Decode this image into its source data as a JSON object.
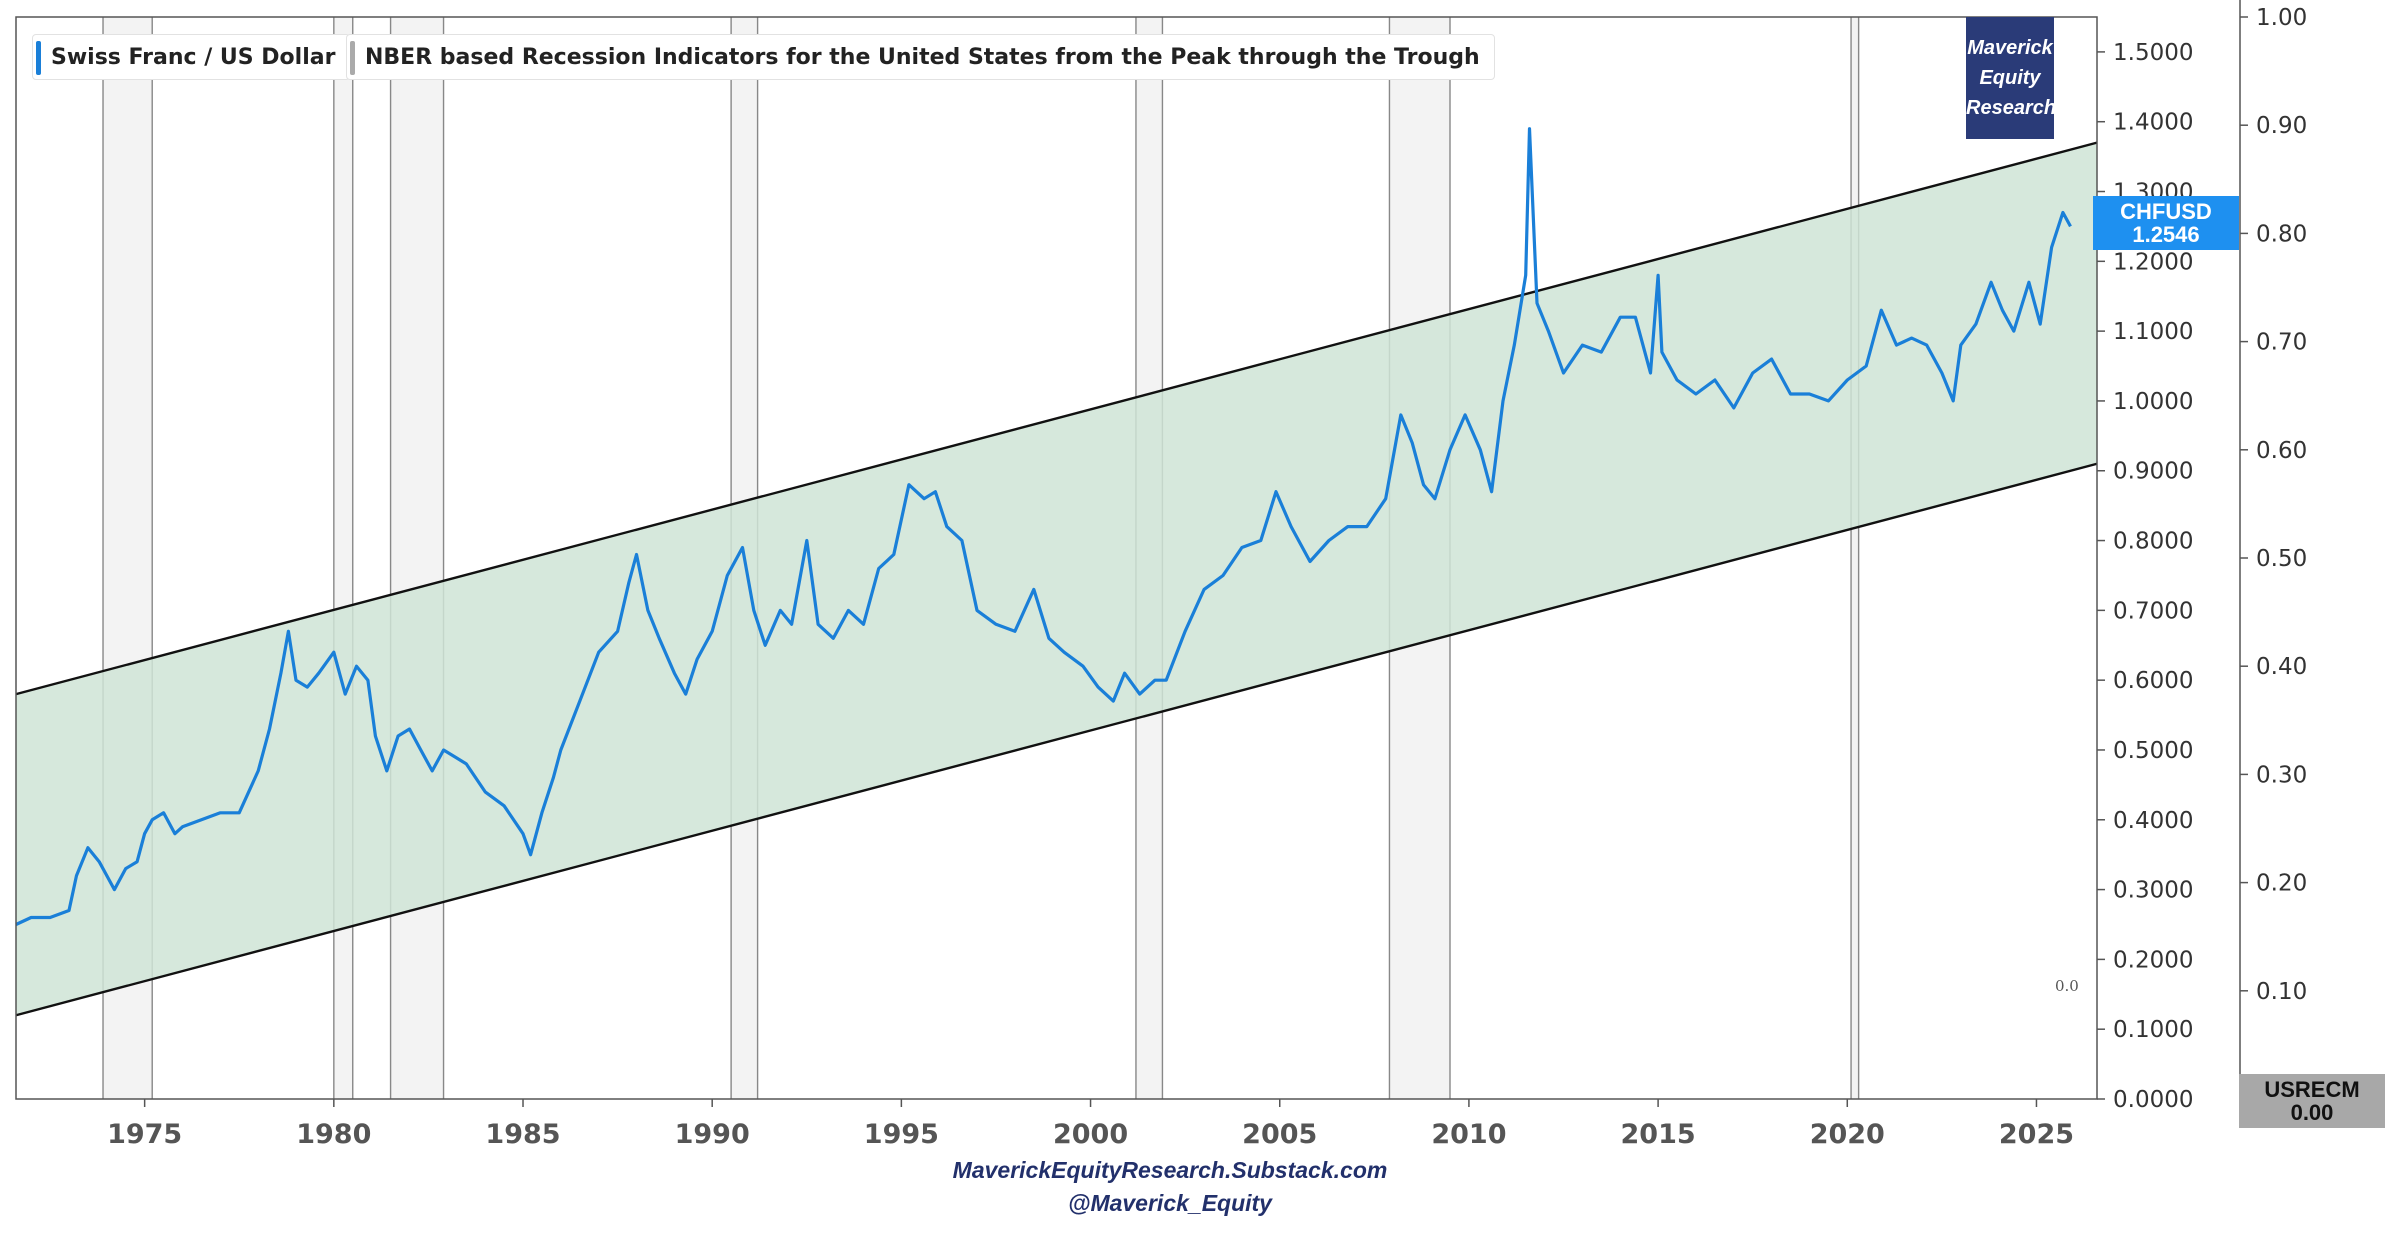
{
  "chart_data": {
    "type": "line",
    "title": "Swiss Franc / US Dollar",
    "x_range": [
      1971.6,
      2026.6
    ],
    "x_ticks": [
      1975,
      1980,
      1985,
      1990,
      1995,
      2000,
      2005,
      2010,
      2015,
      2020,
      2025
    ],
    "y_left": {
      "range": [
        0.0,
        1.55
      ],
      "ticks": [
        0.0,
        0.1,
        0.2,
        0.3,
        0.4,
        0.5,
        0.6,
        0.7,
        0.8,
        0.9,
        1.0,
        1.1,
        1.2,
        1.3,
        1.4,
        1.5
      ],
      "decimals": 4
    },
    "y_right": {
      "range": [
        0.0,
        1.0
      ],
      "ticks": [
        0.0,
        0.1,
        0.2,
        0.3,
        0.4,
        0.5,
        0.6,
        0.7,
        0.8,
        0.9,
        1.0
      ],
      "decimals": 2
    },
    "series": [
      {
        "name": "Swiss Franc / US Dollar",
        "color": "#1a7fd8",
        "points": [
          [
            1971.6,
            0.25
          ],
          [
            1972.0,
            0.26
          ],
          [
            1972.5,
            0.26
          ],
          [
            1973.0,
            0.27
          ],
          [
            1973.2,
            0.32
          ],
          [
            1973.5,
            0.36
          ],
          [
            1973.8,
            0.34
          ],
          [
            1974.0,
            0.32
          ],
          [
            1974.2,
            0.3
          ],
          [
            1974.5,
            0.33
          ],
          [
            1974.8,
            0.34
          ],
          [
            1975.0,
            0.38
          ],
          [
            1975.2,
            0.4
          ],
          [
            1975.5,
            0.41
          ],
          [
            1975.8,
            0.38
          ],
          [
            1976.0,
            0.39
          ],
          [
            1976.5,
            0.4
          ],
          [
            1977.0,
            0.41
          ],
          [
            1977.5,
            0.41
          ],
          [
            1978.0,
            0.47
          ],
          [
            1978.3,
            0.53
          ],
          [
            1978.6,
            0.61
          ],
          [
            1978.8,
            0.67
          ],
          [
            1979.0,
            0.6
          ],
          [
            1979.3,
            0.59
          ],
          [
            1979.6,
            0.61
          ],
          [
            1980.0,
            0.64
          ],
          [
            1980.3,
            0.58
          ],
          [
            1980.6,
            0.62
          ],
          [
            1980.9,
            0.6
          ],
          [
            1981.1,
            0.52
          ],
          [
            1981.4,
            0.47
          ],
          [
            1981.7,
            0.52
          ],
          [
            1982.0,
            0.53
          ],
          [
            1982.3,
            0.5
          ],
          [
            1982.6,
            0.47
          ],
          [
            1982.9,
            0.5
          ],
          [
            1983.2,
            0.49
          ],
          [
            1983.5,
            0.48
          ],
          [
            1984.0,
            0.44
          ],
          [
            1984.5,
            0.42
          ],
          [
            1985.0,
            0.38
          ],
          [
            1985.2,
            0.35
          ],
          [
            1985.5,
            0.41
          ],
          [
            1985.8,
            0.46
          ],
          [
            1986.0,
            0.5
          ],
          [
            1986.5,
            0.57
          ],
          [
            1987.0,
            0.64
          ],
          [
            1987.5,
            0.67
          ],
          [
            1987.8,
            0.74
          ],
          [
            1988.0,
            0.78
          ],
          [
            1988.3,
            0.7
          ],
          [
            1988.6,
            0.66
          ],
          [
            1989.0,
            0.61
          ],
          [
            1989.3,
            0.58
          ],
          [
            1989.6,
            0.63
          ],
          [
            1990.0,
            0.67
          ],
          [
            1990.4,
            0.75
          ],
          [
            1990.8,
            0.79
          ],
          [
            1991.1,
            0.7
          ],
          [
            1991.4,
            0.65
          ],
          [
            1991.8,
            0.7
          ],
          [
            1992.1,
            0.68
          ],
          [
            1992.5,
            0.8
          ],
          [
            1992.8,
            0.68
          ],
          [
            1993.2,
            0.66
          ],
          [
            1993.6,
            0.7
          ],
          [
            1994.0,
            0.68
          ],
          [
            1994.4,
            0.76
          ],
          [
            1994.8,
            0.78
          ],
          [
            1995.2,
            0.88
          ],
          [
            1995.6,
            0.86
          ],
          [
            1995.9,
            0.87
          ],
          [
            1996.2,
            0.82
          ],
          [
            1996.6,
            0.8
          ],
          [
            1997.0,
            0.7
          ],
          [
            1997.5,
            0.68
          ],
          [
            1998.0,
            0.67
          ],
          [
            1998.5,
            0.73
          ],
          [
            1998.9,
            0.66
          ],
          [
            1999.3,
            0.64
          ],
          [
            1999.8,
            0.62
          ],
          [
            2000.2,
            0.59
          ],
          [
            2000.6,
            0.57
          ],
          [
            2000.9,
            0.61
          ],
          [
            2001.3,
            0.58
          ],
          [
            2001.7,
            0.6
          ],
          [
            2002.0,
            0.6
          ],
          [
            2002.5,
            0.67
          ],
          [
            2003.0,
            0.73
          ],
          [
            2003.5,
            0.75
          ],
          [
            2004.0,
            0.79
          ],
          [
            2004.5,
            0.8
          ],
          [
            2004.9,
            0.87
          ],
          [
            2005.3,
            0.82
          ],
          [
            2005.8,
            0.77
          ],
          [
            2006.3,
            0.8
          ],
          [
            2006.8,
            0.82
          ],
          [
            2007.3,
            0.82
          ],
          [
            2007.8,
            0.86
          ],
          [
            2008.2,
            0.98
          ],
          [
            2008.5,
            0.94
          ],
          [
            2008.8,
            0.88
          ],
          [
            2009.1,
            0.86
          ],
          [
            2009.5,
            0.93
          ],
          [
            2009.9,
            0.98
          ],
          [
            2010.3,
            0.93
          ],
          [
            2010.6,
            0.87
          ],
          [
            2010.9,
            1.0
          ],
          [
            2011.2,
            1.08
          ],
          [
            2011.5,
            1.18
          ],
          [
            2011.6,
            1.39
          ],
          [
            2011.8,
            1.14
          ],
          [
            2012.1,
            1.1
          ],
          [
            2012.5,
            1.04
          ],
          [
            2013.0,
            1.08
          ],
          [
            2013.5,
            1.07
          ],
          [
            2014.0,
            1.12
          ],
          [
            2014.4,
            1.12
          ],
          [
            2014.8,
            1.04
          ],
          [
            2015.0,
            1.18
          ],
          [
            2015.1,
            1.07
          ],
          [
            2015.5,
            1.03
          ],
          [
            2016.0,
            1.01
          ],
          [
            2016.5,
            1.03
          ],
          [
            2017.0,
            0.99
          ],
          [
            2017.5,
            1.04
          ],
          [
            2018.0,
            1.06
          ],
          [
            2018.5,
            1.01
          ],
          [
            2019.0,
            1.01
          ],
          [
            2019.5,
            1.0
          ],
          [
            2020.0,
            1.03
          ],
          [
            2020.5,
            1.05
          ],
          [
            2020.9,
            1.13
          ],
          [
            2021.3,
            1.08
          ],
          [
            2021.7,
            1.09
          ],
          [
            2022.1,
            1.08
          ],
          [
            2022.5,
            1.04
          ],
          [
            2022.8,
            1.0
          ],
          [
            2023.0,
            1.08
          ],
          [
            2023.4,
            1.11
          ],
          [
            2023.8,
            1.17
          ],
          [
            2024.1,
            1.13
          ],
          [
            2024.4,
            1.1
          ],
          [
            2024.8,
            1.17
          ],
          [
            2025.1,
            1.11
          ],
          [
            2025.4,
            1.22
          ],
          [
            2025.7,
            1.27
          ],
          [
            2025.9,
            1.25
          ]
        ]
      },
      {
        "name": "NBER based Recession Indicators for the United States from the Peak through the Trough",
        "color": "#c8c8c8",
        "periods": [
          [
            1973.9,
            1975.2
          ],
          [
            1980.0,
            1980.5
          ],
          [
            1981.5,
            1982.9
          ],
          [
            1990.5,
            1991.2
          ],
          [
            2001.2,
            2001.9
          ],
          [
            2007.9,
            2009.5
          ],
          [
            2020.1,
            2020.3
          ]
        ]
      }
    ],
    "trend_channel": {
      "color": "#cfe4d6",
      "upper": [
        [
          1971.6,
          0.58
        ],
        [
          2026.6,
          1.37
        ]
      ],
      "lower": [
        [
          1971.6,
          0.12
        ],
        [
          2026.6,
          0.91
        ]
      ]
    },
    "annotations": {
      "recession_zero_label": "0.0"
    }
  },
  "legend": {
    "series1": "Swiss Franc / US Dollar",
    "series2": "NBER based Recession Indicators for the United States from the Peak through the Trough",
    "series1_color": "#1a7fd8",
    "series2_color": "#aaaaaa"
  },
  "brand": {
    "line1": "Maverick",
    "line2": "Equity",
    "line3": "Research"
  },
  "price_tag": {
    "symbol": "CHFUSD",
    "value": "1.2546"
  },
  "recession_tag": {
    "symbol": "USRECM",
    "value": "0.00"
  },
  "footer": {
    "line1": "MaverickEquityResearch.Substack.com",
    "line2": "@Maverick_Equity"
  }
}
